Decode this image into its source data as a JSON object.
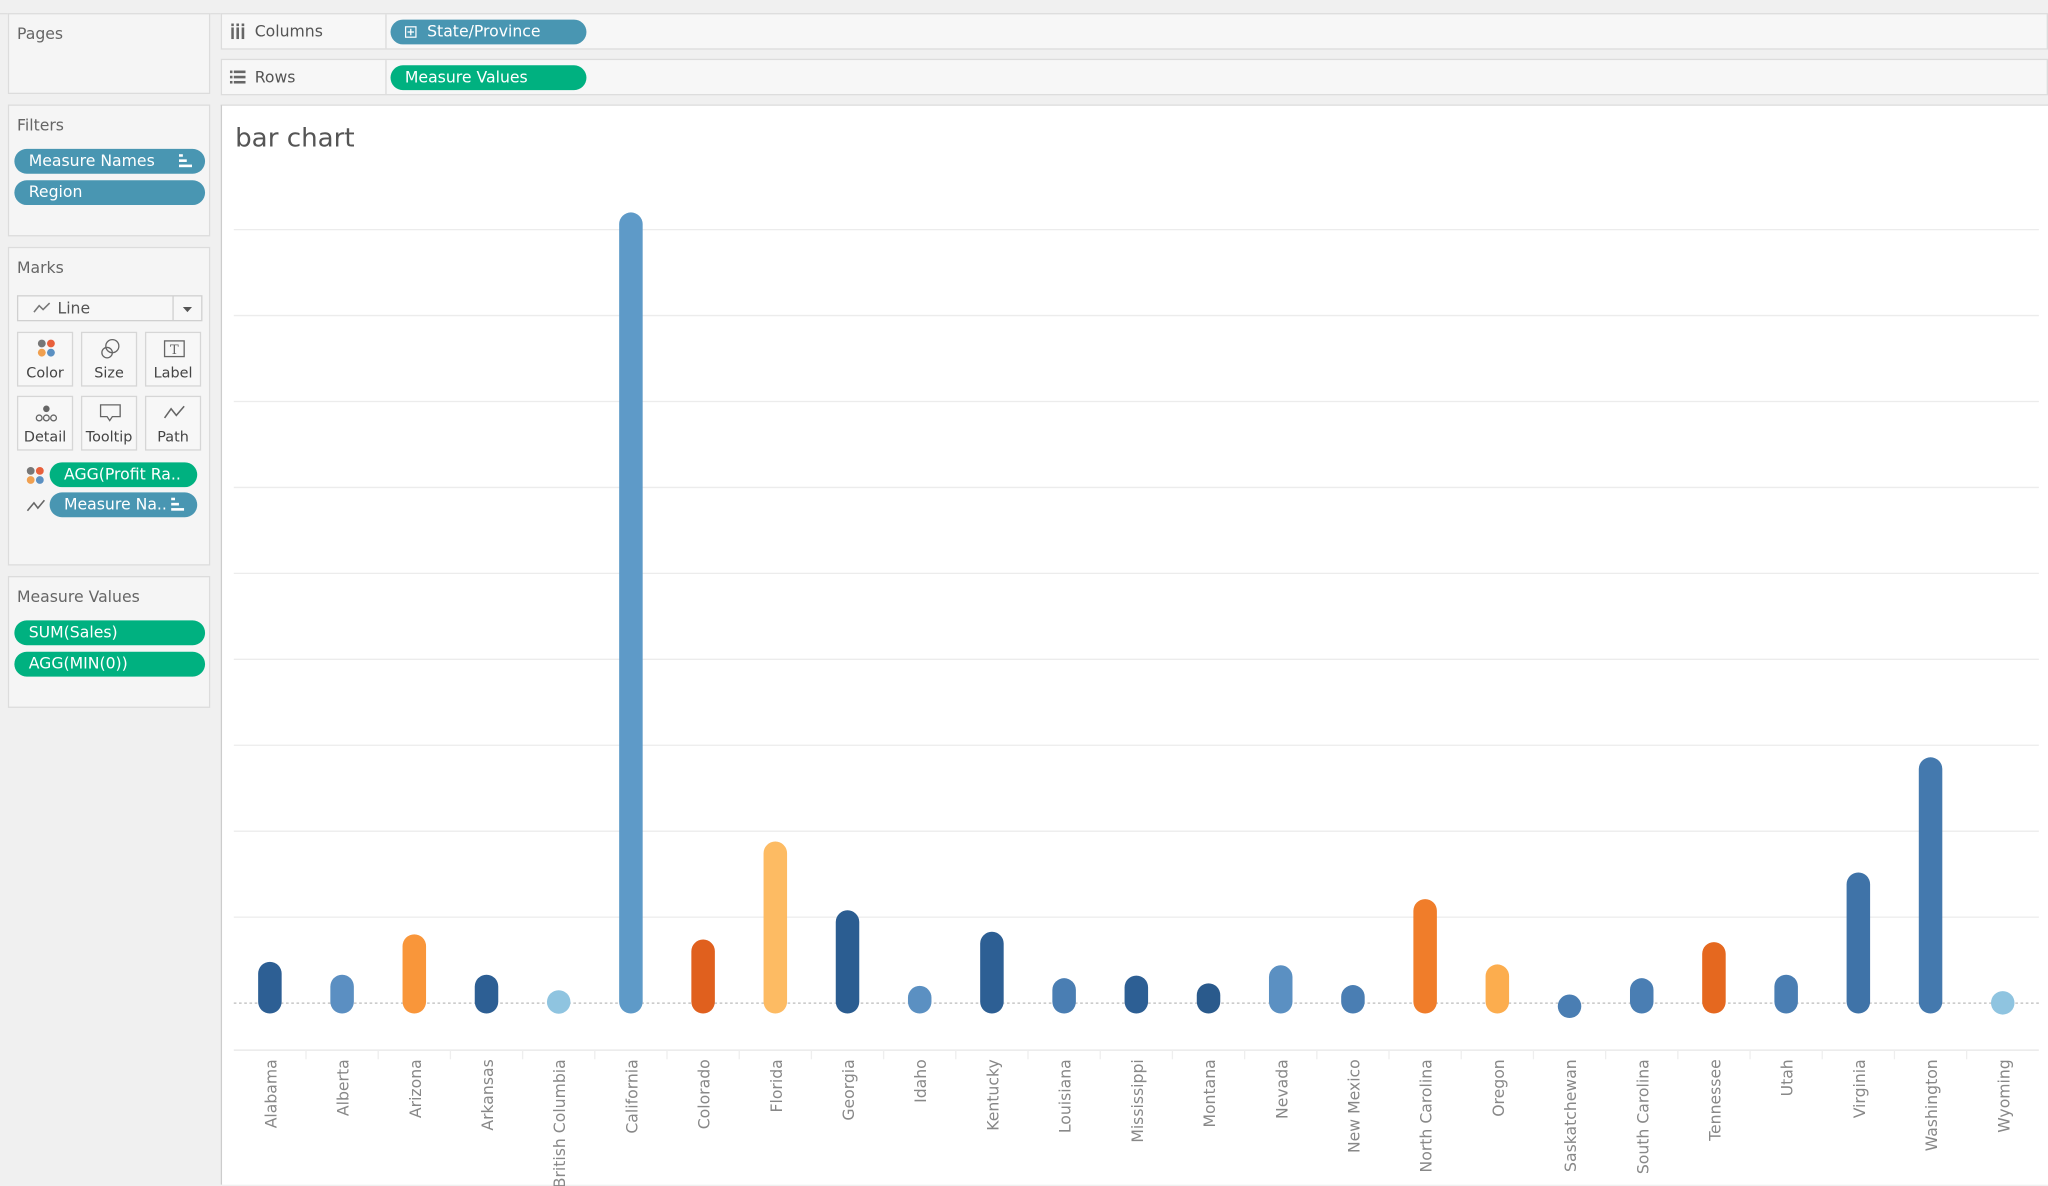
{
  "shelves": {
    "pages": "Pages",
    "columns_label": "Columns",
    "columns_pill": "State/Province",
    "rows_label": "Rows",
    "rows_pill": "Measure Values"
  },
  "filters": {
    "title": "Filters",
    "items": [
      "Measure Names",
      "Region"
    ]
  },
  "marks": {
    "title": "Marks",
    "type": "Line",
    "cards": [
      "Color",
      "Size",
      "Label",
      "Detail",
      "Tooltip",
      "Path"
    ],
    "pills": [
      "AGG(Profit Ra..",
      "Measure Na.."
    ]
  },
  "measure_values": {
    "title": "Measure Values",
    "items": [
      "SUM(Sales)",
      "AGG(MIN(0))"
    ]
  },
  "chart_data": {
    "type": "bar",
    "title": "bar chart",
    "categories": [
      "Alabama",
      "Alberta",
      "Arizona",
      "Arkansas",
      "British Columbia",
      "California",
      "Colorado",
      "Florida",
      "Georgia",
      "Idaho",
      "Kentucky",
      "Louisiana",
      "Mississippi",
      "Montana",
      "Nevada",
      "New Mexico",
      "North Carolina",
      "Oregon",
      "Saskatchewan",
      "South Carolina",
      "Tennessee",
      "Utah",
      "Virginia",
      "Washington",
      "Wyoming"
    ],
    "values_relative_to_gridline_spacing": [
      0.48,
      0.33,
      0.8,
      0.33,
      0.15,
      9.2,
      0.74,
      1.88,
      1.08,
      0.2,
      0.83,
      0.29,
      0.32,
      0.23,
      0.44,
      0.21,
      1.21,
      0.45,
      0.1,
      0.29,
      0.71,
      0.33,
      1.52,
      2.86,
      0.14
    ],
    "colors": [
      "#2d5f94",
      "#5b8fc2",
      "#f9963a",
      "#2d5f94",
      "#8fc4e0",
      "#5e9ac8",
      "#e0601e",
      "#fdbb63",
      "#2b5d91",
      "#5b90c2",
      "#2d5f94",
      "#4a7eb3",
      "#2d5f94",
      "#2a5a8c",
      "#5b90c2",
      "#4a7eb3",
      "#f07d2a",
      "#fcad4e",
      "#4a7eb3",
      "#4a7eb3",
      "#e5681f",
      "#4a7eb3",
      "#3f73a8",
      "#4479ae",
      "#8fc4e0"
    ],
    "grid": true,
    "gridlines": 9,
    "xlabel": "",
    "ylabel": ""
  }
}
